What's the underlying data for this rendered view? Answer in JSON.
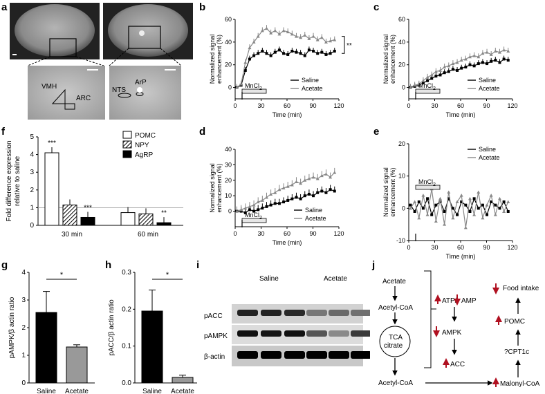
{
  "panel_labels": {
    "a": "a",
    "b": "b",
    "c": "c",
    "d": "d",
    "e": "e",
    "f": "f",
    "g": "g",
    "h": "h",
    "i": "i",
    "j": "j"
  },
  "mri": {
    "vmh": "VMH",
    "arc": "ARC",
    "arp": "ArP",
    "nts": "NTS"
  },
  "mri_label": "MnCl",
  "mri_sub": "2",
  "timecourse_common": {
    "ylabel1": "Normalized signal",
    "ylabel2": "enhancement (%)",
    "xlabel": "Time (min)",
    "legend": [
      "Saline",
      "Acetate"
    ],
    "mncl": "MnCl",
    "mncl_sub": "2",
    "sig": "**",
    "xticks": [
      "0",
      "30",
      "60",
      "90",
      "120"
    ]
  },
  "chart_data": [
    {
      "panel": "b",
      "type": "line",
      "xlabel": "Time (min)",
      "ylabel": "Normalized signal enhancement (%)",
      "ylim": [
        -10,
        60
      ],
      "xlim": [
        0,
        120
      ],
      "yticks": [
        "0",
        "20",
        "40",
        "60"
      ],
      "xticks": [
        "0",
        "30",
        "60",
        "90",
        "120"
      ],
      "series": [
        {
          "name": "Saline",
          "color": "#000000",
          "values": [
            0,
            2,
            15,
            25,
            28,
            30,
            32,
            30,
            28,
            31,
            33,
            30,
            29,
            32,
            31,
            30,
            28,
            33,
            32,
            30,
            31,
            29,
            30,
            32
          ]
        },
        {
          "name": "Acetate",
          "color": "#888888",
          "values": [
            0,
            3,
            22,
            35,
            40,
            45,
            50,
            52,
            48,
            50,
            47,
            50,
            49,
            47,
            45,
            44,
            46,
            43,
            45,
            42,
            44,
            40,
            41,
            42
          ]
        }
      ],
      "annotation": "**"
    },
    {
      "panel": "c",
      "type": "line",
      "xlabel": "Time (min)",
      "ylabel": "Normalized signal enhancement (%)",
      "ylim": [
        -10,
        60
      ],
      "xlim": [
        0,
        120
      ],
      "yticks": [
        "0",
        "20",
        "40",
        "60"
      ],
      "xticks": [
        "0",
        "30",
        "60",
        "90",
        "120"
      ],
      "series": [
        {
          "name": "Saline",
          "color": "#000000",
          "values": [
            0,
            1,
            2,
            4,
            6,
            8,
            10,
            11,
            13,
            14,
            16,
            15,
            17,
            18,
            20,
            19,
            21,
            22,
            21,
            23,
            24,
            22,
            25,
            24
          ]
        },
        {
          "name": "Acetate",
          "color": "#888888",
          "values": [
            0,
            2,
            3,
            6,
            9,
            11,
            14,
            15,
            18,
            19,
            21,
            22,
            24,
            25,
            27,
            28,
            27,
            30,
            31,
            29,
            32,
            31,
            33,
            32
          ]
        }
      ]
    },
    {
      "panel": "d",
      "type": "line",
      "xlabel": "Time (min)",
      "ylabel": "Normalized signal enhancement (%)",
      "ylim": [
        -10,
        40
      ],
      "xlim": [
        0,
        120
      ],
      "yticks": [
        "0",
        "10",
        "20",
        "30",
        "40"
      ],
      "xticks": [
        "0",
        "30",
        "60",
        "90",
        "120"
      ],
      "series": [
        {
          "name": "Saline",
          "color": "#000000",
          "values": [
            0,
            0,
            -1,
            1,
            0,
            1,
            2,
            3,
            4,
            5,
            5,
            6,
            7,
            8,
            9,
            8,
            10,
            11,
            10,
            12,
            13,
            12,
            14,
            13
          ]
        },
        {
          "name": "Acetate",
          "color": "#888888",
          "values": [
            0,
            1,
            2,
            3,
            4,
            6,
            7,
            9,
            11,
            12,
            14,
            15,
            16,
            17,
            19,
            18,
            20,
            21,
            22,
            21,
            23,
            24,
            22,
            25
          ]
        }
      ]
    },
    {
      "panel": "e",
      "type": "line",
      "xlabel": "Time (min)",
      "ylabel": "Normalized signal enhancement (%)",
      "ylim": [
        -10,
        20
      ],
      "xlim": [
        0,
        120
      ],
      "yticks": [
        "-10",
        "0",
        "10",
        "20"
      ],
      "xticks": [
        "0",
        "30",
        "60",
        "90",
        "120"
      ],
      "series": [
        {
          "name": "Saline",
          "color": "#000000",
          "values": [
            1,
            -1,
            2,
            0,
            3,
            -2,
            1,
            2,
            -1,
            3,
            0,
            -2,
            2,
            1,
            -1,
            3,
            0,
            1,
            -2,
            2,
            1,
            0,
            2,
            -1
          ]
        },
        {
          "name": "Acetate",
          "color": "#888888",
          "values": [
            0,
            2,
            -3,
            4,
            -2,
            6,
            -4,
            3,
            -5,
            5,
            -3,
            2,
            4,
            -6,
            3,
            -2,
            5,
            -3,
            1,
            4,
            -2,
            3,
            -1,
            2
          ]
        }
      ]
    },
    {
      "panel": "f",
      "type": "bar",
      "ylabel": "Fold difference expression relative to saline",
      "ylim": [
        0,
        5
      ],
      "yticks": [
        "0",
        "1",
        "2",
        "3",
        "4",
        "5"
      ],
      "categories": [
        "30 min",
        "60 min"
      ],
      "series": [
        {
          "name": "POMC",
          "values": [
            4.1,
            0.72
          ]
        },
        {
          "name": "NPY",
          "values": [
            1.15,
            0.65
          ]
        },
        {
          "name": "AgRP",
          "values": [
            0.45,
            0.15
          ]
        }
      ],
      "annotations": [
        "***",
        "***",
        "**"
      ]
    },
    {
      "panel": "g",
      "type": "bar",
      "ylabel": "pAMPK/β actin ratio",
      "ylim": [
        0,
        4
      ],
      "yticks": [
        "0",
        "1",
        "2",
        "3",
        "4"
      ],
      "categories": [
        "Saline",
        "Acetate"
      ],
      "values": [
        2.55,
        1.3
      ],
      "annotation": "*"
    },
    {
      "panel": "h",
      "type": "bar",
      "ylabel": "pACC/β actin ratio",
      "ylim": [
        0,
        0.3
      ],
      "yticks": [
        "0.0",
        "0.1",
        "0.2",
        "0.3"
      ],
      "categories": [
        "Saline",
        "Acetate"
      ],
      "values": [
        0.195,
        0.015
      ],
      "annotation": "*"
    }
  ],
  "blot": {
    "groups": [
      "Saline",
      "Acetate"
    ],
    "rows": [
      "pACC",
      "pAMPK",
      "β-actin"
    ]
  },
  "pathway": {
    "acetate": "Acetate",
    "acetyl_coa_top": "Acetyl-CoA",
    "tca1": "TCA",
    "tca2": "citrate",
    "acetyl_coa_bottom": "Acetyl-CoA",
    "atp_amp": "ATP/",
    "amp": "AMP",
    "ampk": "AMPK",
    "acc": "ACC",
    "malonyl": "Malonyl-CoA",
    "cpt": "?CPT1c",
    "pomc": "POMC",
    "food": "Food intake"
  },
  "colors": {
    "saline": "#000000",
    "acetate": "#888888",
    "arrow_red": "#b01020"
  }
}
